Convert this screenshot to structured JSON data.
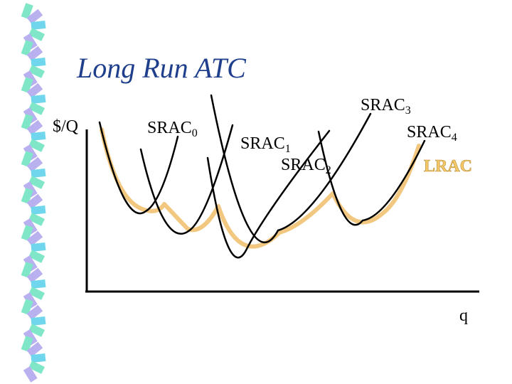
{
  "title": "Long Run ATC",
  "axes": {
    "y_label": "$/Q",
    "x_label": "q"
  },
  "curves": [
    {
      "name": "SRAC",
      "sub": "0"
    },
    {
      "name": "SRAC",
      "sub": "1"
    },
    {
      "name": "SRAC",
      "sub": "2"
    },
    {
      "name": "SRAC",
      "sub": "3"
    },
    {
      "name": "SRAC",
      "sub": "4"
    }
  ],
  "envelope": {
    "label": "LRAC"
  },
  "colors": {
    "title": "#1f3f8c",
    "curve": "#000000",
    "lrac": "#f5c86b",
    "spiral_a": "#7fe6c8",
    "spiral_b": "#b9b0f0",
    "spiral_c": "#6fd6ee"
  },
  "decoration": "spiral-binding"
}
